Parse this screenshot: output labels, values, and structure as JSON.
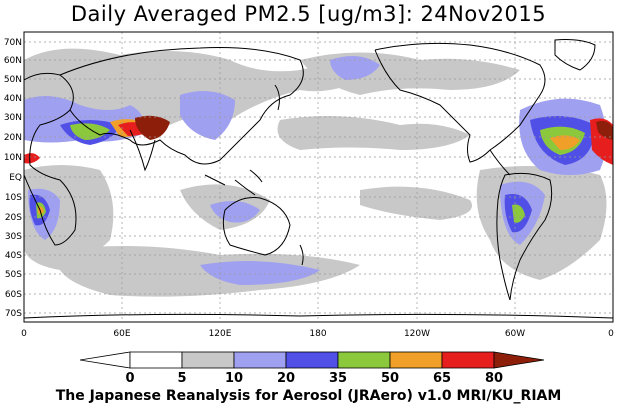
{
  "title": "Daily Averaged PM2.5 [ug/m3]: 24Nov2015",
  "credit": "The Japanese Reanalysis for Aerosol (JRAero) v1.0 MRI/KU_RIAM",
  "lat_labels": [
    "70N",
    "60N",
    "50N",
    "40N",
    "30N",
    "20N",
    "10N",
    "EQ",
    "10S",
    "20S",
    "30S",
    "40S",
    "50S",
    "60S",
    "70S"
  ],
  "lon_labels": [
    "0",
    "60E",
    "120E",
    "180",
    "120W",
    "60W",
    "0"
  ],
  "colorbar": {
    "labels": [
      "0",
      "5",
      "10",
      "20",
      "35",
      "50",
      "65",
      "80"
    ],
    "colors": [
      "#ffffff",
      "#c8c8c8",
      "#a0a0f0",
      "#5050e6",
      "#8cc83c",
      "#f0a028",
      "#e61e1e",
      "#8c1e0a"
    ]
  }
}
